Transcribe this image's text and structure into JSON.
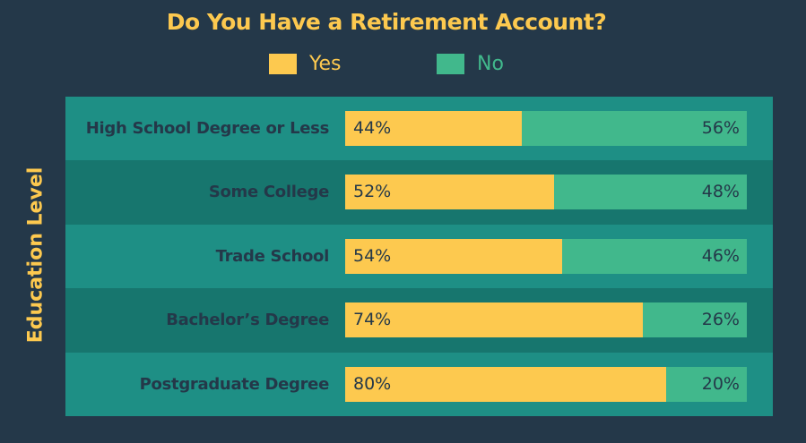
{
  "chart_data": {
    "type": "bar",
    "orientation": "horizontal",
    "stacked": true,
    "title": "Do You Have a Retirement Account?",
    "ylabel": "Education Level",
    "xlabel": "",
    "xlim": [
      0,
      100
    ],
    "legend_position": "top",
    "categories": [
      "High School Degree or Less",
      "Some College",
      "Trade School",
      "Bachelor’s Degree",
      "Postgraduate Degree"
    ],
    "series": [
      {
        "name": "Yes",
        "color": "#fdc94f",
        "values": [
          44,
          52,
          54,
          74,
          80
        ],
        "labels": [
          "44%",
          "52%",
          "54%",
          "74%",
          "80%"
        ]
      },
      {
        "name": "No",
        "color": "#41b88c",
        "values": [
          56,
          48,
          46,
          26,
          20
        ],
        "labels": [
          "56%",
          "48%",
          "46%",
          "26%",
          "20%"
        ]
      }
    ]
  },
  "colors": {
    "background": "#243849",
    "row_light": "#1e8f85",
    "row_dark": "#17766e",
    "text": "#243849"
  }
}
